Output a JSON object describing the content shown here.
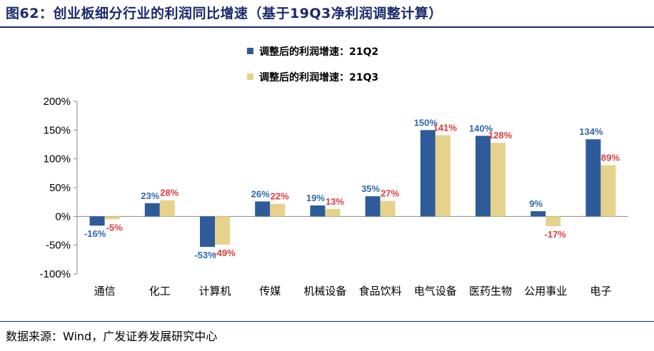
{
  "title": "图62：创业板细分行业的利润同比增速（基于19Q3净利润调整计算）",
  "source": "数据来源：Wind，广发证券发展研究中心",
  "colors": {
    "series1": "#2e5b9a",
    "series2": "#e6d28c",
    "label1": "#2e68b0",
    "label2": "#e03c3c",
    "title": "#1a2a6c"
  },
  "chart_data": {
    "type": "bar",
    "categories": [
      "通信",
      "化工",
      "计算机",
      "传媒",
      "机械设备",
      "食品饮料",
      "电气设备",
      "医药生物",
      "公用事业",
      "电子"
    ],
    "series": [
      {
        "name": "调整后的利润增速：21Q2",
        "values": [
          -16,
          23,
          -53,
          26,
          19,
          35,
          150,
          140,
          9,
          134
        ],
        "labels": [
          "-16%",
          "23%",
          "-53%",
          "26%",
          "19%",
          "35%",
          "150%",
          "140%",
          "9%",
          "134%"
        ]
      },
      {
        "name": "调整后的利润增速：21Q3",
        "values": [
          -5,
          28,
          -49,
          22,
          13,
          27,
          141,
          128,
          -17,
          89
        ],
        "labels": [
          "-5%",
          "28%",
          "-49%",
          "22%",
          "13%",
          "27%",
          "141%",
          "128%",
          "-17%",
          "89%"
        ]
      }
    ],
    "ylim": [
      -100,
      200
    ],
    "yticks": [
      -100,
      -50,
      0,
      50,
      100,
      150,
      200
    ],
    "ytick_labels": [
      "-100%",
      "-50%",
      "0%",
      "50%",
      "100%",
      "150%",
      "200%"
    ],
    "legend": "top",
    "grid": false
  }
}
